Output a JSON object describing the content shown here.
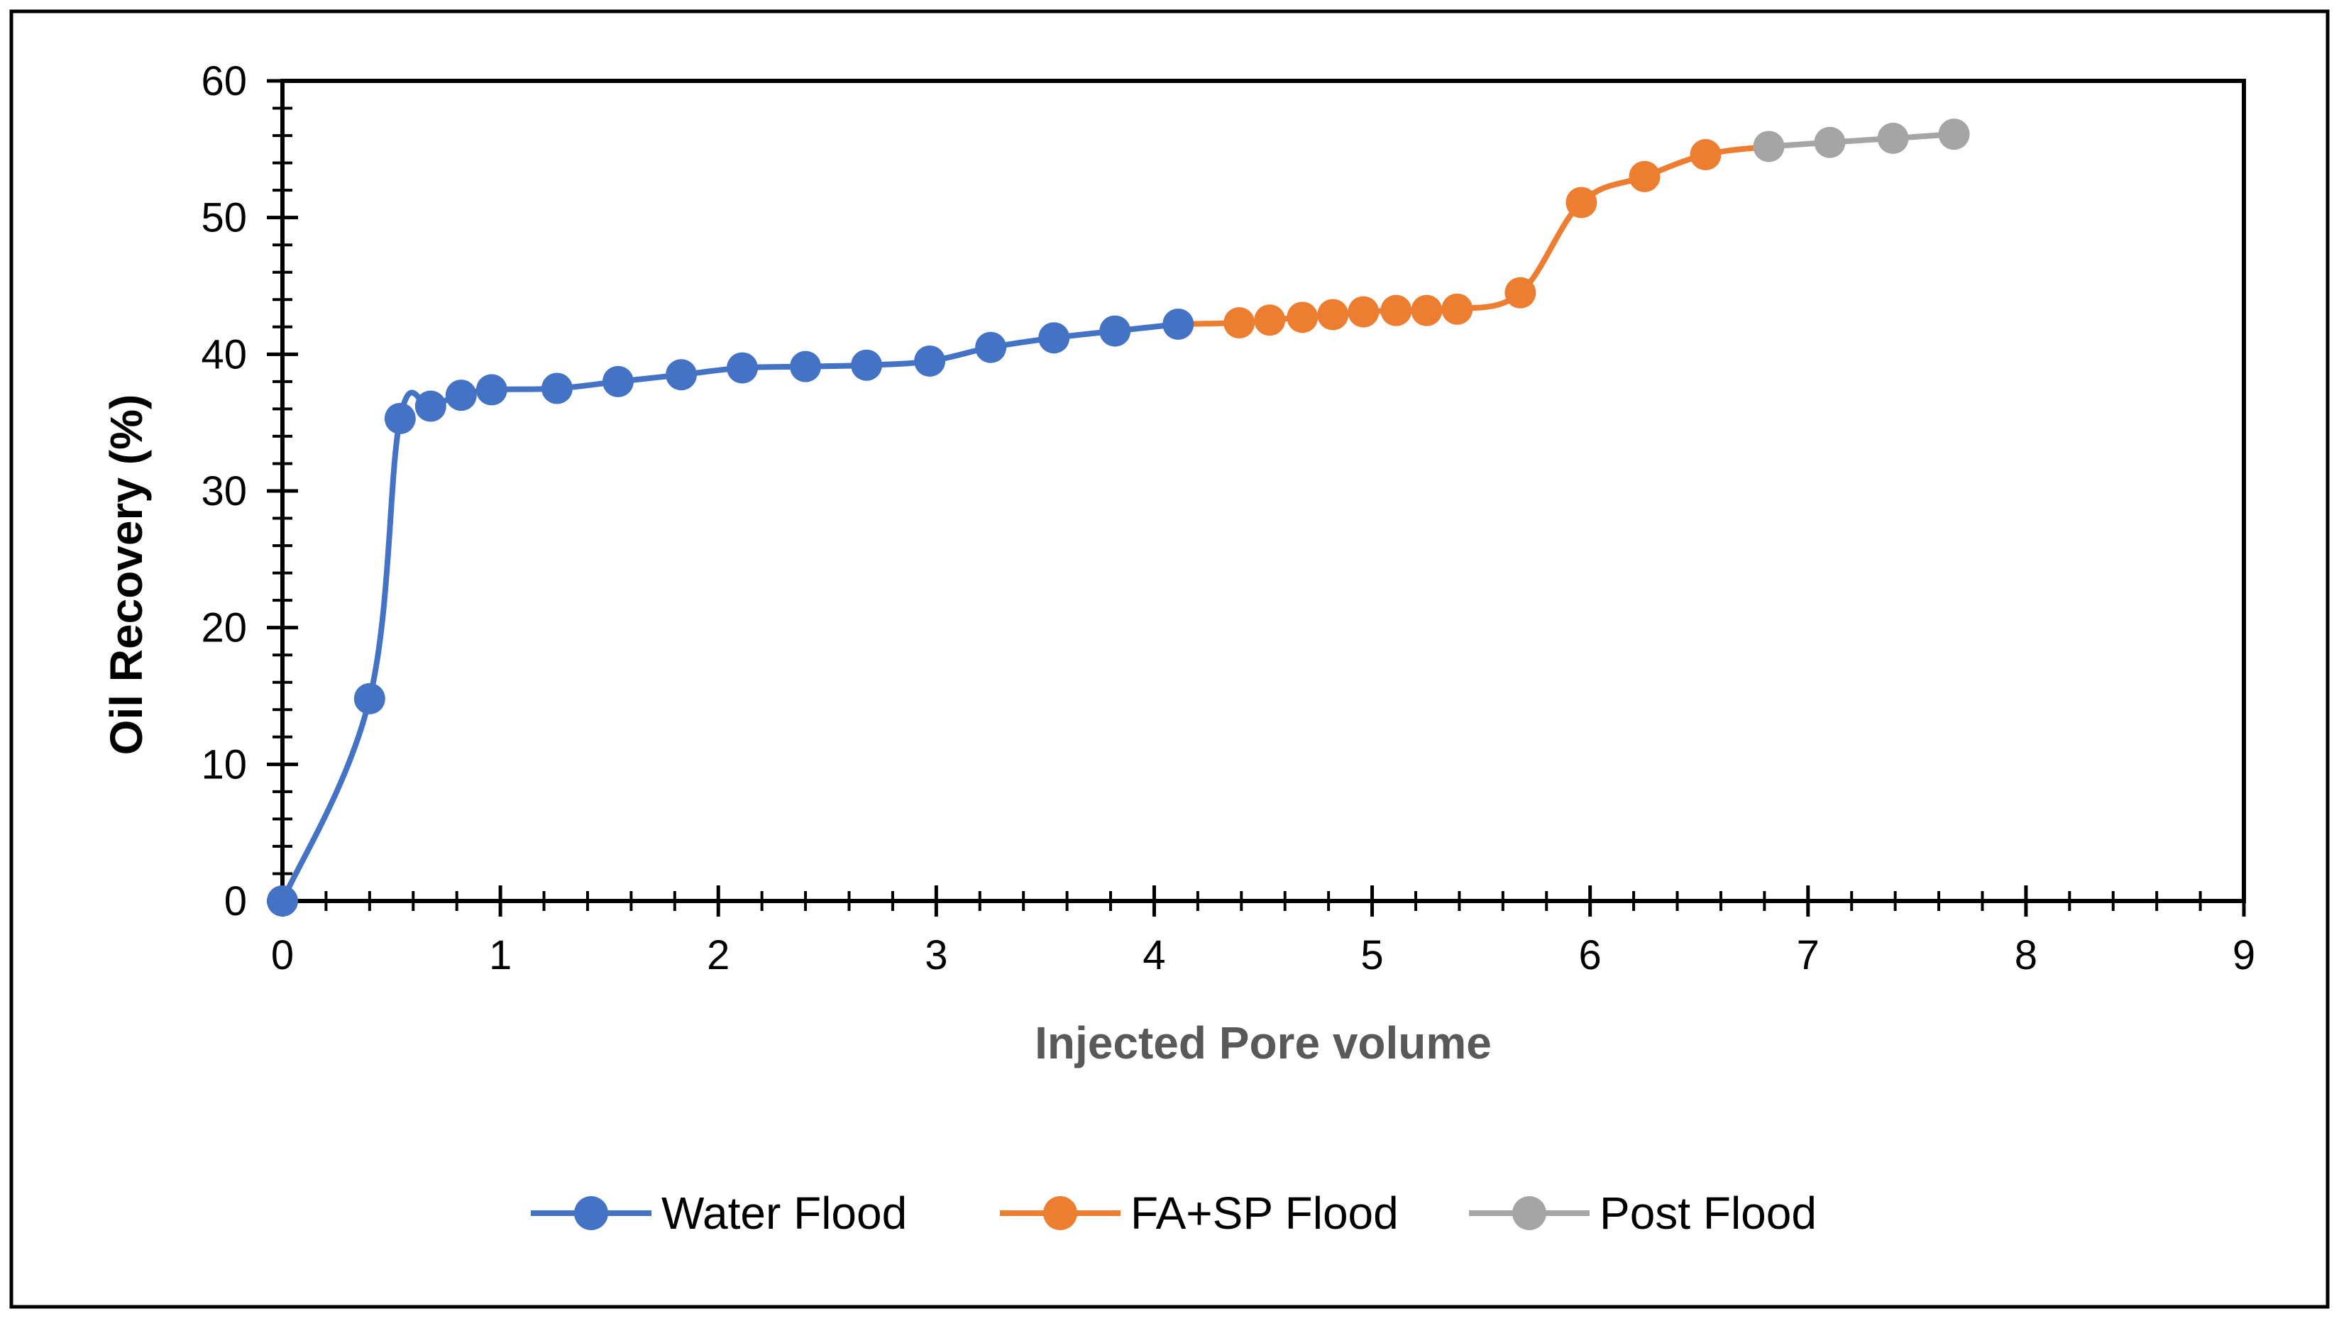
{
  "chart_data": {
    "type": "line",
    "title": "",
    "xlabel": "Injected Pore volume",
    "ylabel": "Oil Recovery (%)",
    "xlim": [
      0,
      9
    ],
    "ylim": [
      0,
      60
    ],
    "x_ticks": [
      0,
      1,
      2,
      3,
      4,
      5,
      6,
      7,
      8,
      9
    ],
    "y_ticks": [
      0,
      10,
      20,
      30,
      40,
      50,
      60
    ],
    "grid": false,
    "legend_position": "bottom",
    "series": [
      {
        "name": "Water Flood",
        "color": "#4472C4",
        "x": [
          0,
          0.4,
          0.54,
          0.68,
          0.82,
          0.96,
          1.26,
          1.54,
          1.83,
          2.11,
          2.4,
          2.68,
          2.97,
          3.25,
          3.54,
          3.82,
          4.11
        ],
        "y": [
          0,
          14.8,
          35.3,
          36.2,
          37.0,
          37.4,
          37.5,
          38.0,
          38.5,
          39.0,
          39.1,
          39.2,
          39.5,
          40.5,
          41.2,
          41.7,
          42.2
        ]
      },
      {
        "name": "FA+SP Flood",
        "color": "#ED7D31",
        "x": [
          4.11,
          4.39,
          4.53,
          4.68,
          4.82,
          4.96,
          5.11,
          5.25,
          5.39,
          5.68,
          5.96,
          6.25,
          6.53,
          6.82
        ],
        "y": [
          42.2,
          42.3,
          42.5,
          42.7,
          42.9,
          43.1,
          43.2,
          43.2,
          43.3,
          44.5,
          51.1,
          53.0,
          54.6,
          55.2
        ]
      },
      {
        "name": "Post Flood",
        "color": "#A5A5A5",
        "x": [
          6.82,
          7.1,
          7.39,
          7.67
        ],
        "y": [
          55.2,
          55.5,
          55.8,
          56.1
        ]
      }
    ],
    "markers": [
      {
        "series": 0,
        "from": 0,
        "to": 16
      },
      {
        "series": 1,
        "from": 1,
        "to": 12
      },
      {
        "series": 2,
        "from": 0,
        "to": 3
      }
    ]
  }
}
